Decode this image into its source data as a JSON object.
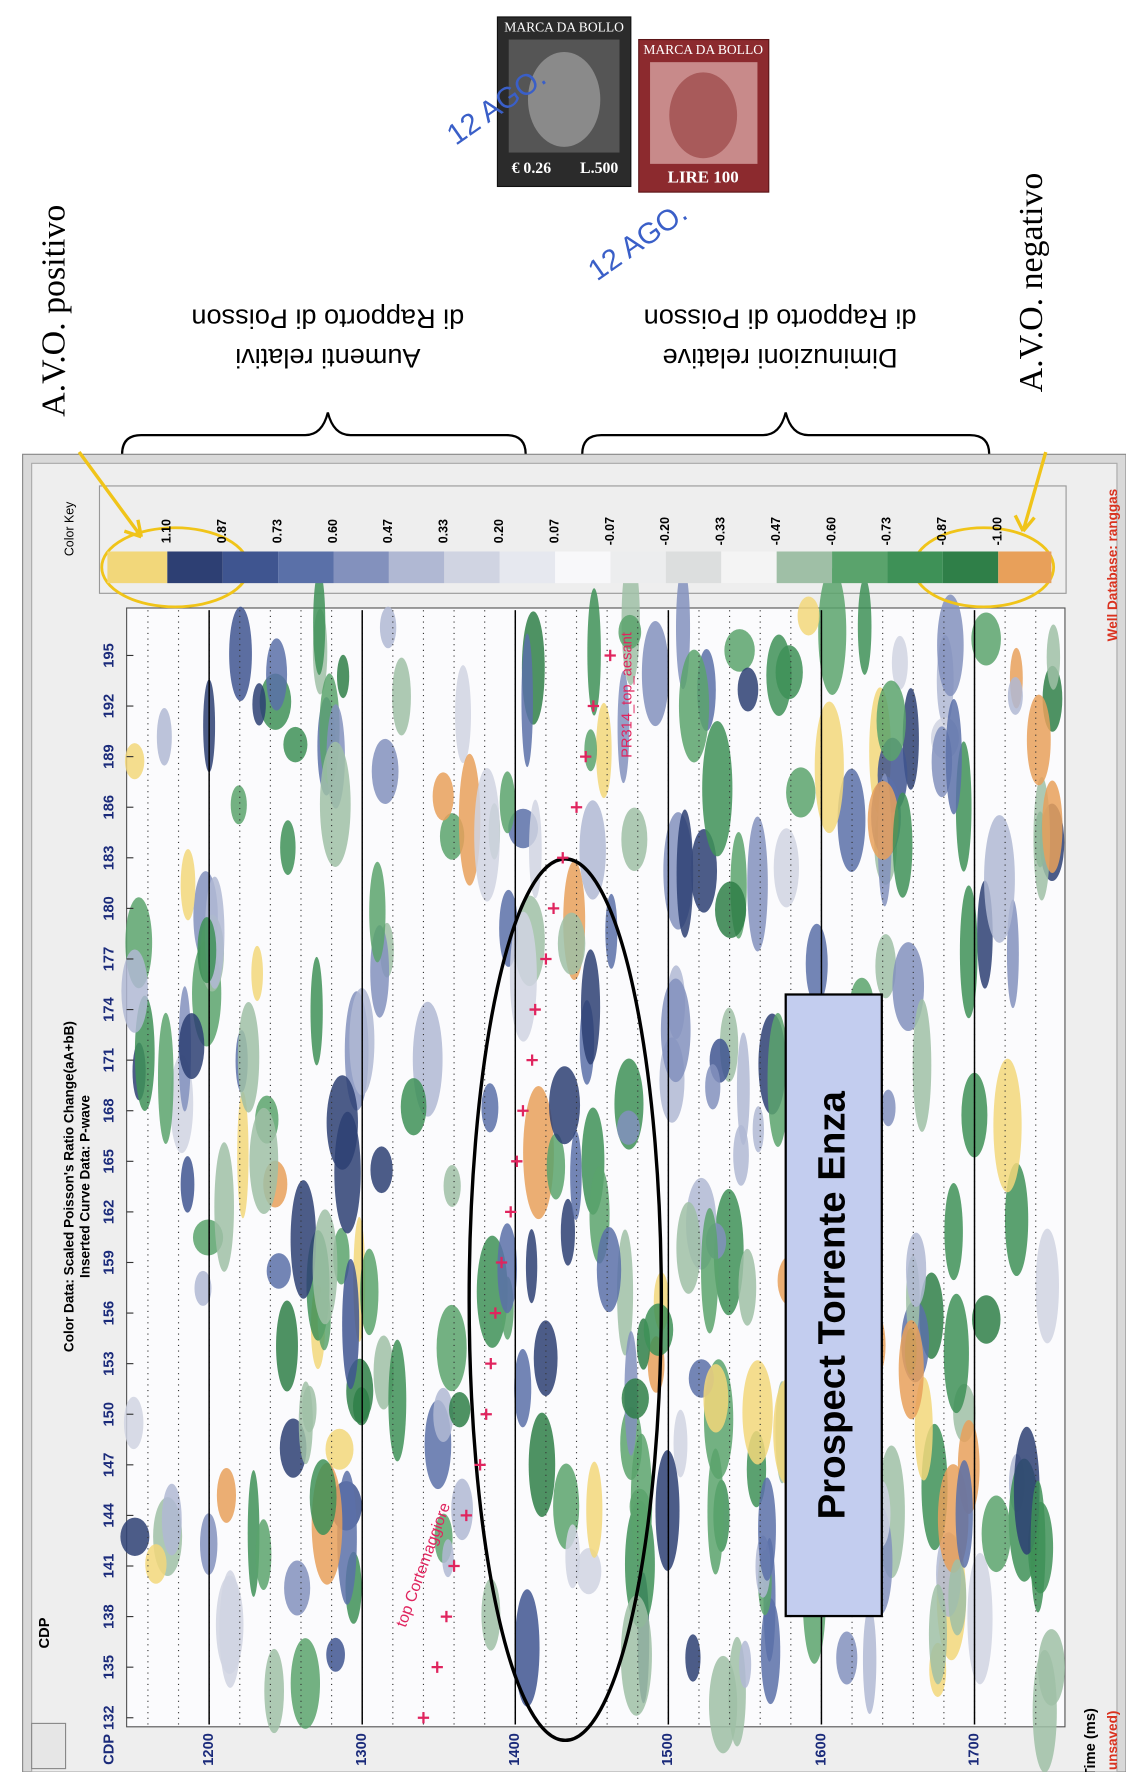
{
  "stamps": [
    {
      "title": "MARCA DA BOLLO",
      "value": "€ 0.26",
      "value2": "L.500"
    },
    {
      "title": "MARCA DA BOLLO",
      "value": "LIRE 100"
    }
  ],
  "postmarks": [
    "12 AGO.",
    "12 AGO."
  ],
  "annotations": {
    "avo_positive": "A.V.O. positivo",
    "avo_negative": "A.V.O. negativo",
    "increase": [
      "Aumenti relativi",
      "di Rapporto di Poisson"
    ],
    "decrease": [
      "Diminuzioni relative",
      "di Rapporto di Poisson"
    ]
  },
  "window": {
    "toolbar_label": "CDP",
    "header": [
      "Color Data: Scaled Poisson's Ratio Change(aA+bB)",
      "Inserted Curve Data:  P-wave"
    ],
    "color_key": {
      "title": "Color Key",
      "labels": [
        "1.10",
        "0.87",
        "0.73",
        "0.60",
        "0.47",
        "0.33",
        "0.20",
        "0.07",
        "-0.07",
        "-0.20",
        "-0.33",
        "-0.47",
        "-0.60",
        "-0.73",
        "-0.87",
        "-1.00"
      ],
      "colors": [
        "#f2d77a",
        "#2d3f73",
        "#3f5590",
        "#5a70a8",
        "#8391bd",
        "#b0b8d3",
        "#d0d4e2",
        "#e6e8ef",
        "#f8f8fa",
        "#ecedee",
        "#dcdede",
        "#f4f4f4",
        "#9fbfa6",
        "#5aa36c",
        "#3e9157",
        "#2f7f48",
        "#e8a05a"
      ]
    },
    "x_axis_label": "CDP",
    "cdp_ticks": [
      132,
      135,
      138,
      141,
      144,
      147,
      150,
      153,
      156,
      159,
      162,
      165,
      168,
      171,
      174,
      177,
      180,
      183,
      186,
      189,
      192,
      195
    ],
    "time_label": "Time (ms)",
    "time_ticks": [
      1200,
      1300,
      1400,
      1500,
      1600,
      1700
    ],
    "well_database": "Well Database: ranggas",
    "status": "unsaved)",
    "horizon": {
      "label": "top Cortemaggiore",
      "cdp": [
        132,
        135,
        138,
        141,
        144,
        147,
        150,
        153,
        156,
        159,
        162,
        165,
        168,
        171,
        174,
        177,
        180,
        183,
        186,
        189,
        192,
        195
      ],
      "time": [
        1340,
        1349,
        1355,
        1360,
        1368,
        1377,
        1381,
        1384,
        1387,
        1391,
        1397,
        1401,
        1405,
        1411,
        1413,
        1420,
        1425,
        1431,
        1440,
        1446,
        1451,
        1462
      ]
    },
    "second_horizon_label": "PR314_top_aesant",
    "prospect": "Prospect Torrente Enza"
  }
}
